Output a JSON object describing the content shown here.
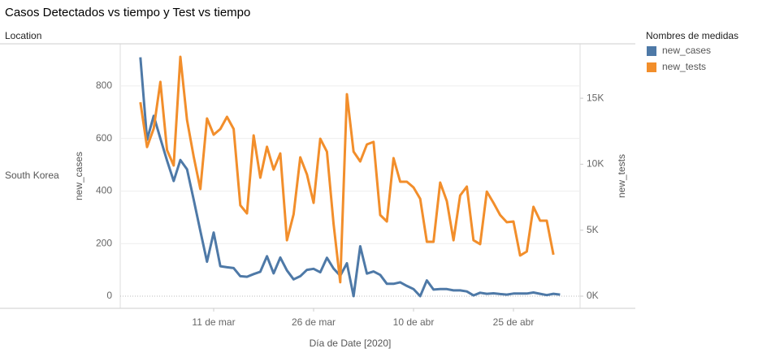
{
  "chart_data": {
    "type": "line",
    "title": "Casos Detectados vs tiempo y Test vs tiempo",
    "column_header": "Location",
    "row_label": "South Korea",
    "x_label": "Día de Date [2020]",
    "y_label": "new_cases",
    "y2_label": "new_tests",
    "legend_title": "Nombres de medidas",
    "legend_position": "right",
    "x": [
      "2020-02-29",
      "2020-03-01",
      "2020-03-02",
      "2020-03-03",
      "2020-03-04",
      "2020-03-05",
      "2020-03-06",
      "2020-03-07",
      "2020-03-08",
      "2020-03-09",
      "2020-03-10",
      "2020-03-11",
      "2020-03-12",
      "2020-03-13",
      "2020-03-14",
      "2020-03-15",
      "2020-03-16",
      "2020-03-17",
      "2020-03-18",
      "2020-03-19",
      "2020-03-20",
      "2020-03-21",
      "2020-03-22",
      "2020-03-23",
      "2020-03-24",
      "2020-03-25",
      "2020-03-26",
      "2020-03-27",
      "2020-03-28",
      "2020-03-29",
      "2020-03-30",
      "2020-03-31",
      "2020-04-01",
      "2020-04-02",
      "2020-04-03",
      "2020-04-04",
      "2020-04-05",
      "2020-04-06",
      "2020-04-07",
      "2020-04-08",
      "2020-04-09",
      "2020-04-10",
      "2020-04-11",
      "2020-04-12",
      "2020-04-13",
      "2020-04-14",
      "2020-04-15",
      "2020-04-16",
      "2020-04-17",
      "2020-04-18",
      "2020-04-19",
      "2020-04-20",
      "2020-04-21",
      "2020-04-22",
      "2020-04-23",
      "2020-04-24",
      "2020-04-25",
      "2020-04-26",
      "2020-04-27",
      "2020-04-28",
      "2020-04-29",
      "2020-04-30",
      "2020-05-01",
      "2020-05-02"
    ],
    "xticks": [
      {
        "value": "2020-03-11",
        "label": "11 de mar"
      },
      {
        "value": "2020-03-26",
        "label": "26 de mar"
      },
      {
        "value": "2020-04-10",
        "label": "10 de abr"
      },
      {
        "value": "2020-04-25",
        "label": "25 de abr"
      }
    ],
    "ylim": [
      -40,
      957
    ],
    "yticks": [
      0,
      200,
      400,
      600,
      800
    ],
    "y2lim": [
      -800,
      19065
    ],
    "y2ticks": [
      {
        "value": 0,
        "label": "0K"
      },
      {
        "value": 5000,
        "label": "5K"
      },
      {
        "value": 10000,
        "label": "10K"
      },
      {
        "value": 15000,
        "label": "15K"
      }
    ],
    "grid": true,
    "series": [
      {
        "name": "new_cases",
        "color": "#4e79a7",
        "axis": "y",
        "values": [
          909,
          595,
          686,
          600,
          516,
          438,
          518,
          483,
          367,
          248,
          131,
          242,
          114,
          110,
          107,
          76,
          74,
          84,
          93,
          152,
          87,
          147,
          98,
          64,
          76,
          100,
          104,
          91,
          146,
          105,
          78,
          125,
          0,
          190,
          86,
          94,
          81,
          47,
          47,
          53,
          39,
          27,
          0,
          60,
          25,
          27,
          27,
          22,
          22,
          18,
          3,
          13,
          9,
          11,
          8,
          6,
          10,
          10,
          10,
          14,
          9,
          4,
          9,
          6
        ]
      },
      {
        "name": "new_tests",
        "color": "#f28e2b",
        "axis": "y2",
        "values": [
          14700,
          11300,
          12700,
          16240,
          11070,
          9900,
          18140,
          13350,
          10580,
          8120,
          13470,
          12240,
          12670,
          13590,
          12670,
          6890,
          6270,
          12180,
          8980,
          11320,
          9590,
          10820,
          4240,
          6210,
          10520,
          9230,
          7070,
          11930,
          10950,
          5470,
          1050,
          15310,
          10950,
          10210,
          11500,
          11690,
          6150,
          5660,
          10460,
          8670,
          8670,
          8240,
          7380,
          4120,
          4120,
          8610,
          7200,
          4240,
          7630,
          8300,
          4240,
          3940,
          7930,
          7070,
          6150,
          5600,
          5660,
          3080,
          3380,
          6770,
          5720,
          5720,
          3140,
          null
        ]
      }
    ]
  }
}
